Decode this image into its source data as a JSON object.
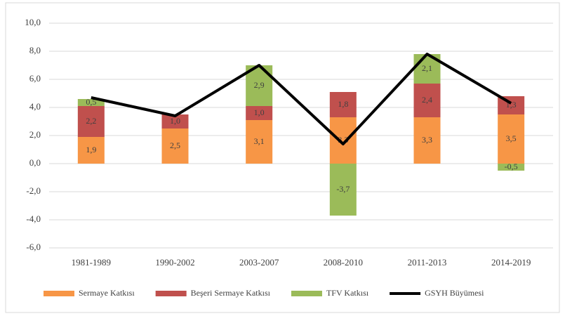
{
  "chart_data": {
    "type": "bar",
    "categories": [
      "1981-1989",
      "1990-2002",
      "2003-2007",
      "2008-2010",
      "2011-2013",
      "2014-2019"
    ],
    "series": [
      {
        "name": "Sermaye Katkısı",
        "color": "#f79646",
        "values": [
          1.9,
          2.5,
          3.1,
          3.3,
          3.3,
          3.5
        ],
        "value_labels": [
          "1,9",
          "2,5",
          "3,1",
          "3,3",
          "3,3",
          "3,5"
        ]
      },
      {
        "name": "Beşeri Sermaye Katkısı",
        "color": "#c0504d",
        "values": [
          2.2,
          1.0,
          1.0,
          1.8,
          2.4,
          1.3
        ],
        "value_labels": [
          "2,2",
          "1,0",
          "1,0",
          "1,8",
          "2,4",
          "1,3"
        ]
      },
      {
        "name": "TFV Katkısı",
        "color": "#9bbb59",
        "values": [
          0.5,
          null,
          2.9,
          -3.7,
          2.1,
          -0.5
        ],
        "value_labels": [
          "0,5",
          null,
          "2,9",
          "-3,7",
          "2,1",
          "-0,5"
        ]
      },
      {
        "name": "GSYH Büyümesi",
        "color": "#000000",
        "type": "line",
        "values": [
          4.7,
          3.4,
          7.0,
          1.4,
          7.8,
          4.3
        ]
      }
    ],
    "ylim": [
      -6,
      10
    ],
    "yticks": [
      {
        "value": -6,
        "label": "-6,0"
      },
      {
        "value": -4,
        "label": "-4,0"
      },
      {
        "value": -2,
        "label": "-2,0"
      },
      {
        "value": 0,
        "label": "0,0"
      },
      {
        "value": 2,
        "label": "2,0"
      },
      {
        "value": 4,
        "label": "4,0"
      },
      {
        "value": 6,
        "label": "6,0"
      },
      {
        "value": 8,
        "label": "8,0"
      },
      {
        "value": 10,
        "label": "10,0"
      }
    ],
    "grid": true,
    "legend": "bottom"
  }
}
